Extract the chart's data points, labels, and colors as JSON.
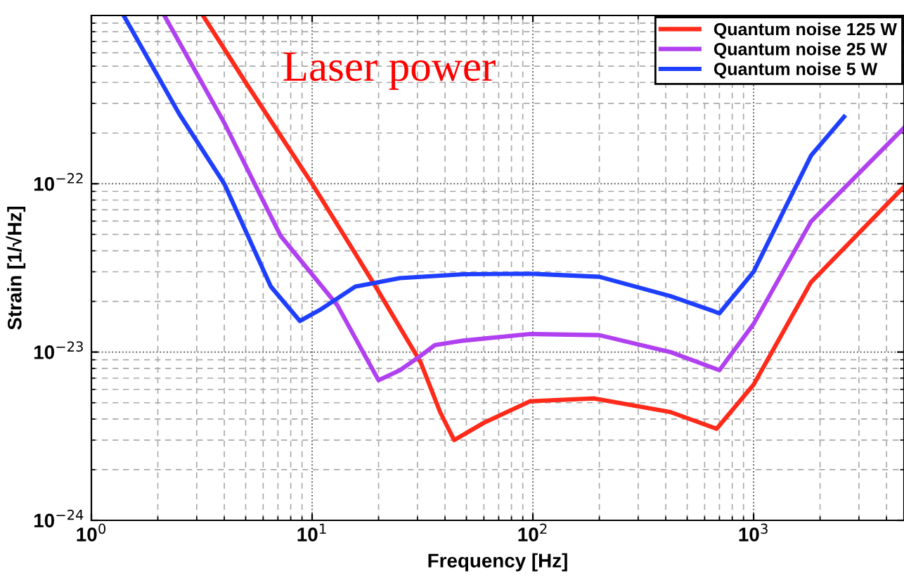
{
  "chart_data": {
    "type": "line",
    "xlabel": "Frequency [Hz]",
    "ylabel": "Strain [1/√Hz]",
    "annotations": [
      "Laser power"
    ],
    "log": "xy",
    "grid": true,
    "legend": "top right",
    "marker": "none",
    "line_style": "solid",
    "xlim": [
      1,
      4800
    ],
    "ylim": [
      1e-24,
      1e-21
    ],
    "xticks": [
      {
        "value": 1,
        "label": "10$^{0}$"
      },
      {
        "value": 10,
        "label": "10$^{1}$"
      },
      {
        "value": 100,
        "label": "10$^{2}$"
      },
      {
        "value": 1000,
        "label": "10$^{3}$"
      }
    ],
    "yticks": [
      {
        "value": 1e-24,
        "label": "10$^{−24}$"
      },
      {
        "value": 1e-23,
        "label": "10$^{−23}$"
      },
      {
        "value": 1e-22,
        "label": "10$^{−22}$"
      }
    ],
    "series": [
      {
        "name": "Quantum noise 125 W",
        "color": "#ff2a1a",
        "x": [
          3.2,
          5,
          10,
          19.4,
          31,
          38,
          44,
          60,
          97,
          190,
          420,
          680,
          1000,
          1820,
          4800
        ],
        "values": [
          1e-21,
          4e-22,
          1e-22,
          2.45e-23,
          8.7e-24,
          4.4e-24,
          3e-24,
          3.8e-24,
          5.1e-24,
          5.3e-24,
          4.4e-24,
          3.5e-24,
          6.4e-24,
          2.6e-23,
          9.6e-23
        ]
      },
      {
        "name": "Quantum noise 25 W",
        "color": "#b040f0",
        "x": [
          2.14,
          4,
          7.2,
          13,
          17,
          20,
          25,
          31,
          36,
          48.6,
          97,
          200,
          420,
          700,
          1000,
          1820,
          4800
        ],
        "values": [
          1e-21,
          2.3e-22,
          4.9e-23,
          1.9e-23,
          1e-23,
          6.8e-24,
          7.8e-24,
          9.5e-24,
          1.1e-23,
          1.17e-23,
          1.28e-23,
          1.26e-23,
          1e-23,
          7.8e-24,
          1.47e-23,
          5.96e-23,
          2.15e-22
        ]
      },
      {
        "name": "Quantum noise 5 W",
        "color": "#1f3fff",
        "x": [
          1.4,
          2.5,
          4.0,
          6.5,
          8.8,
          11,
          15.7,
          25,
          48.6,
          97,
          200,
          420,
          700,
          1000,
          1820,
          2570
        ],
        "values": [
          1e-21,
          2.6e-22,
          1e-22,
          2.45e-23,
          1.53e-23,
          1.8e-23,
          2.45e-23,
          2.75e-23,
          2.9e-23,
          2.92e-23,
          2.8e-23,
          2.15e-23,
          1.7e-23,
          3e-23,
          1.47e-22,
          2.5e-22
        ]
      }
    ]
  }
}
